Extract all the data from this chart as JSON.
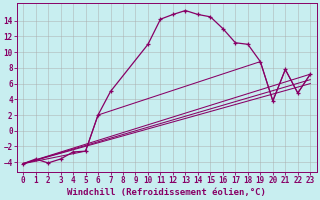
{
  "xlabel": "Windchill (Refroidissement éolien,°C)",
  "background_color": "#c8eef0",
  "grid_color": "#aaaaaa",
  "line_color": "#880066",
  "xlim": [
    -0.5,
    23.5
  ],
  "ylim": [
    -5.2,
    16.2
  ],
  "yticks": [
    -4,
    -2,
    0,
    2,
    4,
    6,
    8,
    10,
    12,
    14
  ],
  "xticks": [
    0,
    1,
    2,
    3,
    4,
    5,
    6,
    7,
    8,
    9,
    10,
    11,
    12,
    13,
    14,
    15,
    16,
    17,
    18,
    19,
    20,
    21,
    22,
    23
  ],
  "curve1_x": [
    0,
    1,
    2,
    3,
    4,
    5,
    6,
    7,
    10,
    11,
    12,
    13,
    14,
    15,
    16,
    17,
    18,
    19,
    20,
    21,
    22,
    23
  ],
  "curve1_y": [
    -4.2,
    -3.6,
    -4.1,
    -3.6,
    -2.7,
    -2.6,
    2.0,
    5.0,
    11.0,
    14.2,
    14.8,
    15.3,
    14.8,
    14.5,
    13.0,
    11.2,
    11.0,
    8.8,
    3.8,
    7.8,
    4.8,
    7.2
  ],
  "line1_x": [
    0,
    23
  ],
  "line1_y": [
    -4.2,
    7.2
  ],
  "line2_x": [
    0,
    23
  ],
  "line2_y": [
    -4.2,
    6.5
  ],
  "line3_x": [
    0,
    23
  ],
  "line3_y": [
    -4.2,
    6.0
  ],
  "line4_x": [
    0,
    5,
    6,
    19,
    20,
    21,
    22,
    23
  ],
  "line4_y": [
    -4.2,
    -2.6,
    2.0,
    8.8,
    3.8,
    7.8,
    4.8,
    7.2
  ],
  "font_size_xlabel": 6.5,
  "font_size_tick": 5.5
}
